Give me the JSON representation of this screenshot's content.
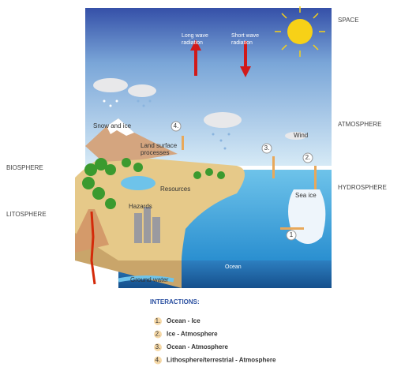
{
  "layers": {
    "space": "SPACE",
    "atmosphere": "ATMOSPHERE",
    "hydrosphere": "HYDROSPHERE",
    "biosphere": "BIOSPHERE",
    "litosphere": "LITOSPHERE"
  },
  "labels": {
    "long_wave": [
      "Long wave",
      "radiation"
    ],
    "short_wave": [
      "Short wave",
      "radiation"
    ],
    "snow": "Snow and ice",
    "land": [
      "Land surface",
      "processes"
    ],
    "resources": "Resources",
    "hazards": "Hazards",
    "wind": "Wind",
    "sea_ice": "Sea ice",
    "ground_water": "Ground water",
    "ocean": "Ocean"
  },
  "markers": [
    "1",
    "2.",
    "3.",
    "4."
  ],
  "interactions": {
    "title": "INTERACTIONS:",
    "items": [
      {
        "number": "1.",
        "text": "Ocean - Ice"
      },
      {
        "number": "2.",
        "text": "Ice - Atmosphere"
      },
      {
        "number": "3.",
        "text": "Ocean - Atmosphere"
      },
      {
        "number": "4.",
        "text": "Lithosphere/terrestrial - Atmosphere"
      }
    ]
  }
}
